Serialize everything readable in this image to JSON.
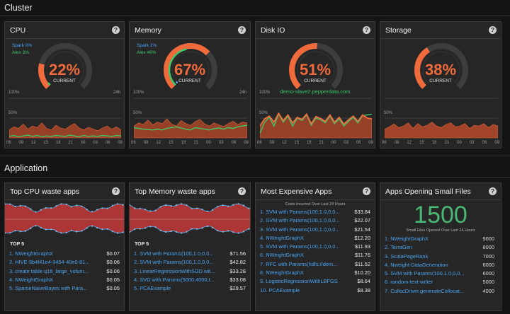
{
  "cluster": {
    "title": "Cluster",
    "cpu": {
      "title": "CPU",
      "percent": "22%",
      "current_label": "CURRENT",
      "legend1": "Spark 0%",
      "legend2": "Alex 3%",
      "value": 0.22
    },
    "memory": {
      "title": "Memory",
      "percent": "67%",
      "current_label": "CURRENT",
      "legend1": "Spark 1%",
      "legend2": "Alex 46%",
      "value": 0.67
    },
    "diskio": {
      "title": "Disk IO",
      "percent": "51%",
      "current_label": "CURRENT",
      "host": "demo-slave2.pepperdata.com",
      "value": 0.51
    },
    "storage": {
      "title": "Storage",
      "percent": "38%",
      "current_label": "CURRENT",
      "value": 0.38
    },
    "chart_labels": {
      "max": "100%",
      "range": "24h",
      "mid": "50%"
    },
    "x_ticks": [
      "06",
      "09",
      "12",
      "15",
      "18",
      "21",
      "00",
      "03",
      "06",
      "09"
    ]
  },
  "application": {
    "title": "Application",
    "top5_label": "TOP 5",
    "cpu_waste": {
      "title": "Top CPU waste apps",
      "rows": [
        {
          "name": "1. NWeightGraphX",
          "value": "$0.07"
        },
        {
          "name": "2. HIVE-9b4f41e4-3454-40e0-81...",
          "value": "$0.06"
        },
        {
          "name": "3. create table q18_large_volum...",
          "value": "$0.06"
        },
        {
          "name": "4. NWeightGraphX",
          "value": "$0.05"
        },
        {
          "name": "5. SparseNaiveBayes with Para...",
          "value": "$0.05"
        }
      ]
    },
    "memory_waste": {
      "title": "Top Memory waste apps",
      "rows": [
        {
          "name": "1. SVM with Params(100,1.0,0,0...",
          "value": "$71.56"
        },
        {
          "name": "2. SVM with Params(100,1.0,0,0...",
          "value": "$42.82"
        },
        {
          "name": "3. LinearRegressionWithSGD wit...",
          "value": "$33.28"
        },
        {
          "name": "4. SVD with Params(5000,4000,t...",
          "value": "$33.08"
        },
        {
          "name": "5. PCAExample",
          "value": "$29.57"
        }
      ]
    },
    "expensive": {
      "title": "Most Expensive Apps",
      "caption": "Costs Incurred Over Last 24 Hours",
      "rows": [
        {
          "name": "1. SVM with Params(100,1.0,0,0...",
          "value": "$33.84"
        },
        {
          "name": "2. SVM with Params(100,1.0,0,0...",
          "value": "$22.07"
        },
        {
          "name": "3. SVM with Params(100,1.0,0,0...",
          "value": "$21.54"
        },
        {
          "name": "4. NWeightGraphX",
          "value": "$12.20"
        },
        {
          "name": "5. SVM with Params(100,1.0,0,0...",
          "value": "$11.93"
        },
        {
          "name": "6. NWeightGraphX",
          "value": "$11.76"
        },
        {
          "name": "7. RFC with Params(hdfs://dem...",
          "value": "$11.52"
        },
        {
          "name": "8. NWeightGraphX",
          "value": "$10.20"
        },
        {
          "name": "9. LogisticRegressionWithLBFGS",
          "value": "$8.64"
        },
        {
          "name": "10. PCAExample",
          "value": "$8.38"
        }
      ]
    },
    "small_files": {
      "title": "Apps Opening Small Files",
      "count": "1500",
      "caption": "Small Files Opened Over Last 24 Hours",
      "rows": [
        {
          "name": "1. NWeightGraphX",
          "value": "9000"
        },
        {
          "name": "2. TerraGen",
          "value": "8000"
        },
        {
          "name": "3. ScalaPageRank",
          "value": "7000"
        },
        {
          "name": "4. Nweight-DataGeneration",
          "value": "6000"
        },
        {
          "name": "5. SVM with Params(100,1.0,0,0...",
          "value": "6000"
        },
        {
          "name": "6. random-text-writer",
          "value": "5000"
        },
        {
          "name": "7. CollocDriver.generateCollocat...",
          "value": "4000"
        }
      ]
    }
  },
  "colors": {
    "orange": "#f06a3c",
    "green": "#3ec86a",
    "blue": "#4da3ff",
    "red": "#c43a3a"
  }
}
